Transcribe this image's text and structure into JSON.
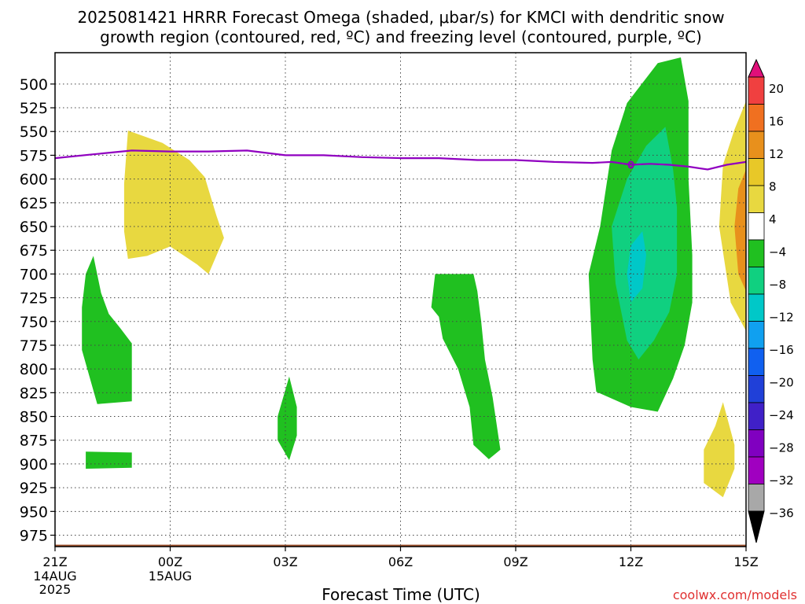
{
  "title_line1": "2025081421 HRRR Forecast Omega (shaded, μbar/s) for KMCI with dendritic snow",
  "title_line2": "growth region (contoured, red, ºC) and freezing level (contoured, purple, ºC)",
  "xlabel": "Forecast Time (UTC)",
  "credit": "coolwx.com/models",
  "chart_data": {
    "type": "heatmap",
    "title": "2025081421 HRRR Forecast Omega (shaded, μbar/s) for KMCI with dendritic snow growth region (contoured, red, ºC) and freezing level (contoured, purple, ºC)",
    "xlabel": "Forecast Time (UTC)",
    "ylabel": "",
    "xlim": [
      0,
      18
    ],
    "ylim": [
      987,
      467
    ],
    "grid": true,
    "x_ticks": [
      {
        "x": 0,
        "label": "21Z",
        "sub": [
          "14AUG",
          "2025"
        ]
      },
      {
        "x": 3,
        "label": "00Z",
        "sub": [
          "15AUG"
        ]
      },
      {
        "x": 6,
        "label": "03Z",
        "sub": []
      },
      {
        "x": 9,
        "label": "06Z",
        "sub": []
      },
      {
        "x": 12,
        "label": "09Z",
        "sub": []
      },
      {
        "x": 15,
        "label": "12Z",
        "sub": []
      },
      {
        "x": 18,
        "label": "15Z",
        "sub": []
      }
    ],
    "y_ticks": [
      500,
      525,
      550,
      575,
      600,
      625,
      650,
      675,
      700,
      725,
      750,
      775,
      800,
      825,
      850,
      875,
      900,
      925,
      950,
      975
    ],
    "colorbar": {
      "labels": [
        "20",
        "16",
        "12",
        "8",
        "4",
        "−4",
        "−8",
        "−12",
        "−16",
        "−20",
        "−24",
        "−28",
        "−32",
        "−36"
      ],
      "colors": [
        "#e0107a",
        "#f04040",
        "#f07020",
        "#e8901c",
        "#e8c828",
        "#e8d840",
        "#ffffff",
        "#20c020",
        "#10d080",
        "#00c8c8",
        "#10a0f0",
        "#1060f0",
        "#2040d8",
        "#4020c8",
        "#8000c0",
        "#a000c0",
        "#a8a8a8",
        "#000000"
      ]
    },
    "shaded_regions": [
      {
        "name": "A",
        "fill": "#e8d840",
        "points": [
          [
            1.9,
            549
          ],
          [
            2.8,
            562
          ],
          [
            3.5,
            580
          ],
          [
            3.9,
            598
          ],
          [
            4.2,
            638
          ],
          [
            4.4,
            662
          ],
          [
            4.0,
            700
          ],
          [
            3.7,
            690
          ],
          [
            3.0,
            671
          ],
          [
            2.4,
            681
          ],
          [
            1.9,
            684
          ],
          [
            1.8,
            655
          ],
          [
            1.8,
            605
          ]
        ]
      },
      {
        "name": "B",
        "fill": "#20c020",
        "points": [
          [
            1.0,
            681
          ],
          [
            1.2,
            720
          ],
          [
            1.4,
            742
          ],
          [
            1.7,
            757
          ],
          [
            2.0,
            773
          ],
          [
            2.0,
            834
          ],
          [
            1.1,
            837
          ],
          [
            0.7,
            780
          ],
          [
            0.7,
            735
          ],
          [
            0.8,
            700
          ]
        ]
      },
      {
        "name": "C",
        "fill": "#20c020",
        "points": [
          [
            0.8,
            887
          ],
          [
            2.0,
            888
          ],
          [
            2.0,
            904
          ],
          [
            0.8,
            905
          ]
        ]
      },
      {
        "name": "D",
        "fill": "#20c020",
        "points": [
          [
            6.1,
            808
          ],
          [
            6.3,
            840
          ],
          [
            6.3,
            870
          ],
          [
            6.1,
            896
          ],
          [
            5.8,
            875
          ],
          [
            5.8,
            850
          ]
        ]
      },
      {
        "name": "E",
        "fill": "#20c020",
        "points": [
          [
            9.9,
            700
          ],
          [
            10.9,
            700
          ],
          [
            11.0,
            718
          ],
          [
            11.1,
            750
          ],
          [
            11.2,
            790
          ],
          [
            11.4,
            830
          ],
          [
            11.6,
            885
          ],
          [
            11.3,
            895
          ],
          [
            10.9,
            880
          ],
          [
            10.8,
            840
          ],
          [
            10.5,
            800
          ],
          [
            10.1,
            768
          ],
          [
            10.0,
            745
          ],
          [
            9.8,
            735
          ]
        ]
      },
      {
        "name": "F",
        "fill": "#20c020",
        "points": [
          [
            15.7,
            478
          ],
          [
            16.3,
            472
          ],
          [
            16.5,
            518
          ],
          [
            16.5,
            600
          ],
          [
            16.6,
            680
          ],
          [
            16.6,
            730
          ],
          [
            16.4,
            775
          ],
          [
            16.1,
            810
          ],
          [
            15.7,
            845
          ],
          [
            15.0,
            840
          ],
          [
            14.1,
            824
          ],
          [
            14.0,
            790
          ],
          [
            13.9,
            700
          ],
          [
            14.2,
            650
          ],
          [
            14.5,
            570
          ],
          [
            14.9,
            520
          ]
        ]
      },
      {
        "name": "G",
        "fill": "#10d080",
        "points": [
          [
            15.9,
            545
          ],
          [
            16.1,
            590
          ],
          [
            16.2,
            630
          ],
          [
            16.2,
            700
          ],
          [
            16.0,
            740
          ],
          [
            15.6,
            770
          ],
          [
            15.2,
            790
          ],
          [
            14.9,
            770
          ],
          [
            14.6,
            710
          ],
          [
            14.5,
            650
          ],
          [
            14.9,
            600
          ],
          [
            15.4,
            565
          ]
        ]
      },
      {
        "name": "H",
        "fill": "#00c8c8",
        "points": [
          [
            15.3,
            655
          ],
          [
            15.4,
            680
          ],
          [
            15.3,
            715
          ],
          [
            15.0,
            730
          ],
          [
            14.9,
            700
          ],
          [
            15.0,
            670
          ]
        ]
      },
      {
        "name": "I",
        "fill": "#e8d840",
        "points": [
          [
            18.0,
            518
          ],
          [
            18.0,
            760
          ],
          [
            17.6,
            730
          ],
          [
            17.3,
            650
          ],
          [
            17.4,
            585
          ],
          [
            17.7,
            548
          ]
        ]
      },
      {
        "name": "J",
        "fill": "#e8901c",
        "points": [
          [
            18.0,
            590
          ],
          [
            18.0,
            718
          ],
          [
            17.8,
            700
          ],
          [
            17.7,
            650
          ],
          [
            17.8,
            610
          ]
        ]
      },
      {
        "name": "K",
        "fill": "#e8d840",
        "points": [
          [
            17.4,
            835
          ],
          [
            17.6,
            865
          ],
          [
            17.7,
            880
          ],
          [
            17.7,
            905
          ],
          [
            17.4,
            935
          ],
          [
            16.9,
            920
          ],
          [
            16.9,
            885
          ],
          [
            17.2,
            860
          ]
        ]
      }
    ],
    "freezing_level": {
      "label": "0",
      "color": "#9000c0",
      "points": [
        [
          0,
          578
        ],
        [
          1,
          574
        ],
        [
          2,
          570
        ],
        [
          3,
          571
        ],
        [
          4,
          571
        ],
        [
          5,
          570
        ],
        [
          6,
          575
        ],
        [
          7,
          575
        ],
        [
          8,
          577
        ],
        [
          9,
          578
        ],
        [
          10,
          578
        ],
        [
          11,
          580
        ],
        [
          12,
          580
        ],
        [
          13,
          582
        ],
        [
          14,
          583
        ],
        [
          14.5,
          582
        ],
        [
          15,
          585
        ],
        [
          15.5,
          584
        ],
        [
          16,
          585
        ],
        [
          16.5,
          587
        ],
        [
          17,
          590
        ],
        [
          17.5,
          585
        ],
        [
          18,
          582
        ]
      ]
    },
    "terrain": {
      "color": "#a0522d",
      "top": 985
    }
  }
}
